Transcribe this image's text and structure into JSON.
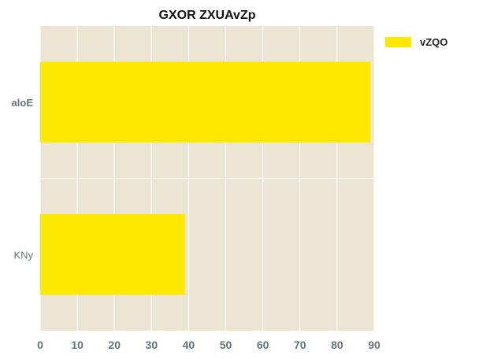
{
  "chart_data": {
    "type": "bar",
    "orientation": "horizontal",
    "title": "GXOR ZXUAvZp",
    "categories": [
      "aloE",
      "KNy"
    ],
    "category_label_weight": [
      "bold",
      "normal"
    ],
    "series": [
      {
        "name": "vZQO",
        "values": [
          89,
          39
        ],
        "color": "#ffe800"
      }
    ],
    "xlim": [
      0,
      90
    ],
    "x_ticks": [
      0,
      10,
      20,
      30,
      40,
      50,
      60,
      70,
      80,
      90
    ],
    "xlabel": "",
    "ylabel": "",
    "grid": true,
    "legend_position": "top-right",
    "plot_background": "#ede5d3",
    "grid_color": "#ffffff",
    "axis_text_color": "#5f7580"
  }
}
